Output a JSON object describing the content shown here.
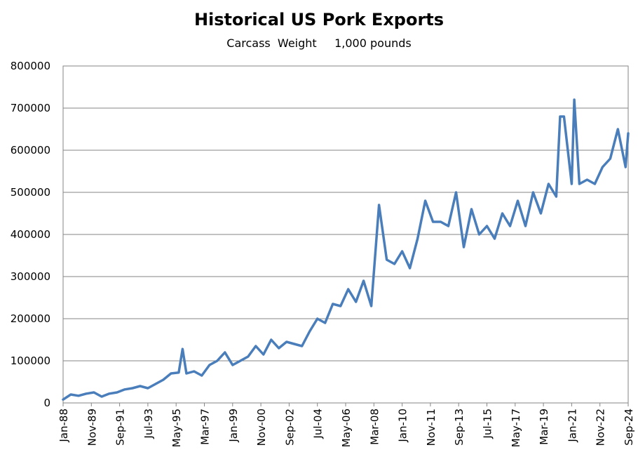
{
  "chart_data": {
    "type": "line",
    "title": "Historical US Pork Exports",
    "subtitle": "Carcass  Weight     1,000 pounds",
    "xlabel": "",
    "ylabel": "",
    "ylim": [
      0,
      800000
    ],
    "y_ticks": [
      "0",
      "100000",
      "200000",
      "300000",
      "400000",
      "500000",
      "600000",
      "700000",
      "800000"
    ],
    "x_tick_labels": [
      "Jan-88",
      "Nov-89",
      "Sep-91",
      "Jul-93",
      "May-95",
      "Mar-97",
      "Jan-99",
      "Nov-00",
      "Sep-02",
      "Jul-04",
      "May-06",
      "Mar-08",
      "Jan-10",
      "Nov-11",
      "Sep-13",
      "Jul-15",
      "May-17",
      "Mar-19",
      "Jan-21",
      "Nov-22",
      "Sep-24"
    ],
    "x_range": [
      "Jan-88",
      "Sep-24"
    ],
    "grid": "horizontal",
    "legend": "none",
    "line_color": "#4a7ebb",
    "series": [
      {
        "x": [
          "Jan-88",
          "Jul-88",
          "Jan-89",
          "Jul-89",
          "Jan-90",
          "Jul-90",
          "Jan-91",
          "Jul-91",
          "Jan-92",
          "Jul-92",
          "Jan-93",
          "Jul-93",
          "Jan-94",
          "Jul-94",
          "Jan-95",
          "Jul-95",
          "Oct-95",
          "Jan-96",
          "Jul-96",
          "Jan-97",
          "Jul-97",
          "Jan-98",
          "Jul-98",
          "Jan-99",
          "Jul-99",
          "Jan-00",
          "Jul-00",
          "Jan-01",
          "Jul-01",
          "Jan-02",
          "Jul-02",
          "Jan-03",
          "Jul-03",
          "Jan-04",
          "Jul-04",
          "Jan-05",
          "Jul-05",
          "Jan-06",
          "Jul-06",
          "Jan-07",
          "Jul-07",
          "Jan-08",
          "Jul-08",
          "Jan-09",
          "Jul-09",
          "Jan-10",
          "Jul-10",
          "Jan-11",
          "Jul-11",
          "Jan-12",
          "Jul-12",
          "Jan-13",
          "Jul-13",
          "Jan-14",
          "Jul-14",
          "Jan-15",
          "Jul-15",
          "Jan-16",
          "Jul-16",
          "Jan-17",
          "Jul-17",
          "Jan-18",
          "Jul-18",
          "Jan-19",
          "Jul-19",
          "Jan-20",
          "Apr-20",
          "Jul-20",
          "Jan-21",
          "Mar-21",
          "Jul-21",
          "Jan-22",
          "Jul-22",
          "Jan-23",
          "Jul-23",
          "Jan-24",
          "Jul-24",
          "Sep-24"
        ],
        "values": [
          8000,
          20000,
          17000,
          22000,
          25000,
          15000,
          22000,
          25000,
          32000,
          35000,
          40000,
          35000,
          45000,
          55000,
          70000,
          72000,
          128000,
          70000,
          75000,
          65000,
          90000,
          100000,
          120000,
          90000,
          100000,
          110000,
          135000,
          115000,
          150000,
          130000,
          145000,
          140000,
          135000,
          170000,
          200000,
          190000,
          235000,
          230000,
          270000,
          240000,
          290000,
          230000,
          470000,
          340000,
          330000,
          360000,
          320000,
          390000,
          480000,
          430000,
          430000,
          420000,
          500000,
          370000,
          460000,
          400000,
          420000,
          390000,
          450000,
          420000,
          480000,
          420000,
          500000,
          450000,
          520000,
          490000,
          680000,
          680000,
          520000,
          720000,
          520000,
          530000,
          520000,
          560000,
          580000,
          650000,
          560000,
          640000
        ]
      }
    ]
  }
}
